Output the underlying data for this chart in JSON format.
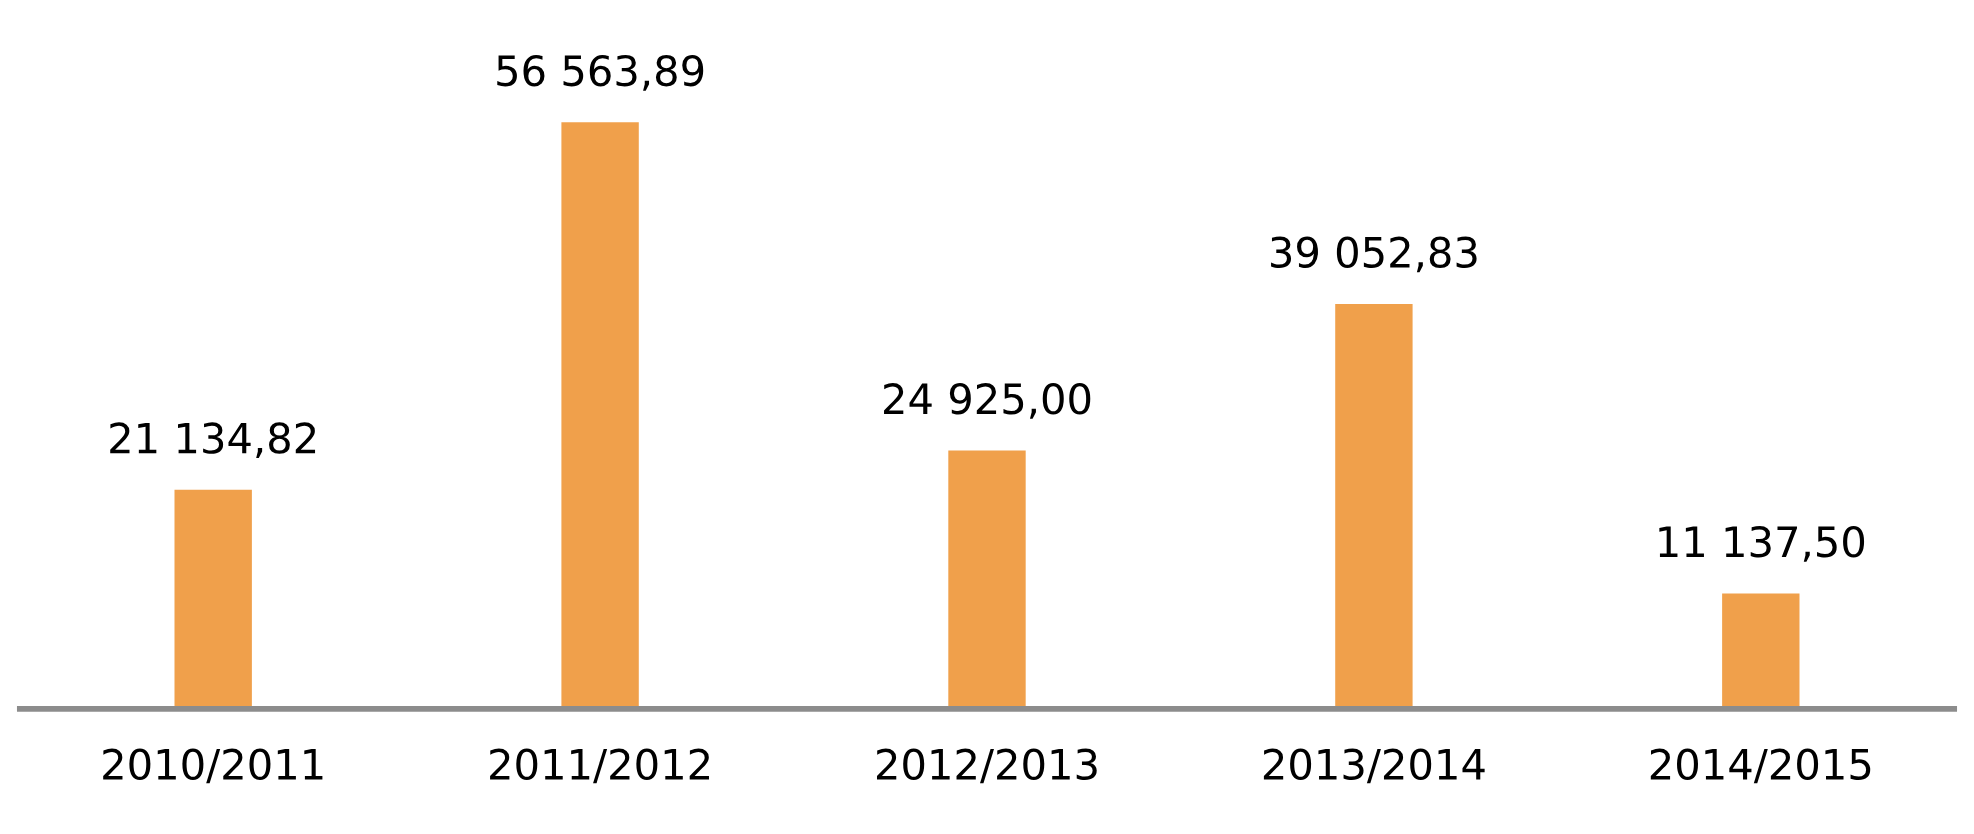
{
  "chart_data": {
    "type": "bar",
    "categories": [
      "2010/2011",
      "2011/2012",
      "2012/2013",
      "2013/2014",
      "2014/2015"
    ],
    "values": [
      21134.82,
      56563.89,
      24925.0,
      39052.83,
      11137.5
    ],
    "value_labels": [
      "21 134,82",
      "56 563,89",
      "24 925,00",
      "39 052,83",
      "11 137,50"
    ],
    "color": "#f0a04b",
    "grid": false,
    "legend": false
  }
}
